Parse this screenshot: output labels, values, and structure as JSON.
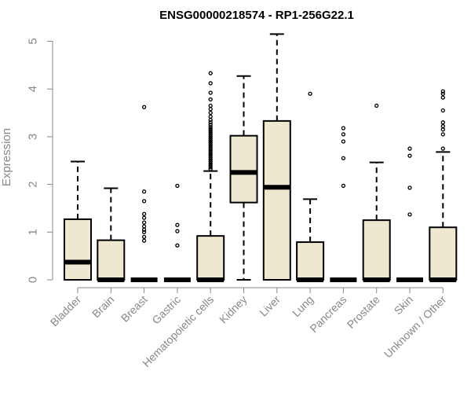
{
  "chart_data": {
    "type": "box",
    "title": "ENSG00000218574 - RP1-256G22.1",
    "xlabel": "",
    "ylabel": "Expression",
    "ylim": [
      0,
      5.2
    ],
    "yticks": [
      0,
      1,
      2,
      3,
      4,
      5
    ],
    "grid": false,
    "box_fill": "#EEE8D0",
    "axis_color": "#888888",
    "categories": [
      "Bladder",
      "Brain",
      "Breast",
      "Gastric",
      "Hematopoietic cells",
      "Kidney",
      "Liver",
      "Lung",
      "Pancreas",
      "Prostate",
      "Skin",
      "Unknown / Other"
    ],
    "boxes": [
      {
        "q1": 0.0,
        "median": 0.37,
        "q3": 1.27,
        "whisker_low": 0.0,
        "whisker_high": 2.48,
        "outliers": []
      },
      {
        "q1": 0.0,
        "median": 0.0,
        "q3": 0.83,
        "whisker_low": 0.0,
        "whisker_high": 1.92,
        "outliers": []
      },
      {
        "q1": 0.0,
        "median": 0.0,
        "q3": 0.0,
        "whisker_low": 0.0,
        "whisker_high": 0.0,
        "outliers": [
          0.82,
          0.9,
          1.0,
          1.05,
          1.12,
          1.2,
          1.3,
          1.38,
          1.65,
          1.85,
          3.62
        ]
      },
      {
        "q1": 0.0,
        "median": 0.0,
        "q3": 0.0,
        "whisker_low": 0.0,
        "whisker_high": 0.0,
        "outliers": [
          0.72,
          1.02,
          1.15,
          1.97
        ]
      },
      {
        "q1": 0.0,
        "median": 0.0,
        "q3": 0.92,
        "whisker_low": 0.0,
        "whisker_high": 2.28,
        "outliers": [
          2.32,
          2.36,
          2.4,
          2.44,
          2.48,
          2.52,
          2.56,
          2.6,
          2.64,
          2.68,
          2.72,
          2.76,
          2.8,
          2.84,
          2.88,
          2.92,
          2.96,
          3.0,
          3.04,
          3.08,
          3.12,
          3.16,
          3.2,
          3.25,
          3.3,
          3.35,
          3.42,
          3.5,
          3.58,
          3.65,
          3.78,
          3.92,
          4.12,
          4.33
        ]
      },
      {
        "q1": 1.62,
        "median": 2.25,
        "q3": 3.02,
        "whisker_low": 0.0,
        "whisker_high": 4.27,
        "outliers": []
      },
      {
        "q1": 0.0,
        "median": 1.94,
        "q3": 3.33,
        "whisker_low": 0.0,
        "whisker_high": 5.15,
        "outliers": []
      },
      {
        "q1": 0.0,
        "median": 0.0,
        "q3": 0.79,
        "whisker_low": 0.0,
        "whisker_high": 1.69,
        "outliers": [
          3.9
        ]
      },
      {
        "q1": 0.0,
        "median": 0.0,
        "q3": 0.0,
        "whisker_low": 0.0,
        "whisker_high": 0.0,
        "outliers": [
          1.97,
          2.55,
          2.9,
          3.05,
          3.18
        ]
      },
      {
        "q1": 0.0,
        "median": 0.0,
        "q3": 1.25,
        "whisker_low": 0.0,
        "whisker_high": 2.46,
        "outliers": [
          3.65
        ]
      },
      {
        "q1": 0.0,
        "median": 0.0,
        "q3": 0.0,
        "whisker_low": 0.0,
        "whisker_high": 0.0,
        "outliers": [
          1.37,
          1.93,
          2.6,
          2.75
        ]
      },
      {
        "q1": 0.0,
        "median": 0.0,
        "q3": 1.1,
        "whisker_low": 0.0,
        "whisker_high": 2.68,
        "outliers": [
          2.75,
          3.05,
          3.15,
          3.22,
          3.3,
          3.55,
          3.82,
          3.9,
          3.95
        ]
      }
    ]
  }
}
